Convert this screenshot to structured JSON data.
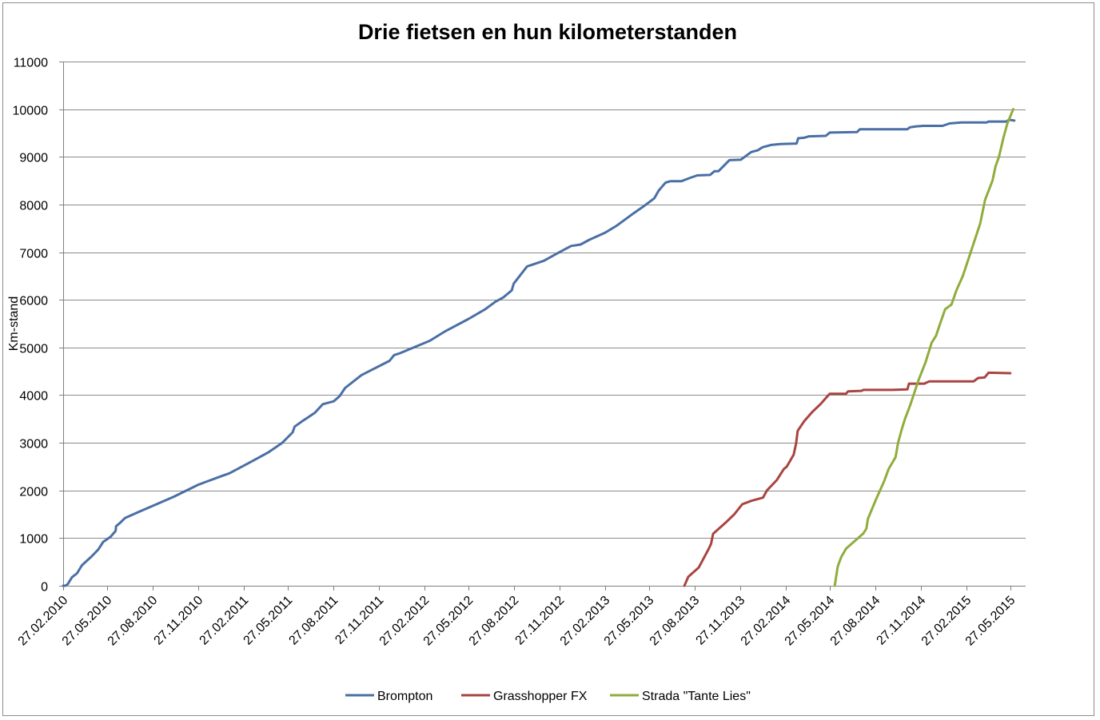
{
  "chart_data": {
    "type": "line",
    "title": "Drie fietsen en hun kilometerstanden",
    "xlabel": "",
    "ylabel": "Km-stand",
    "ylim": [
      0,
      11000
    ],
    "yticks": [
      0,
      1000,
      2000,
      3000,
      4000,
      5000,
      6000,
      7000,
      8000,
      9000,
      10000,
      11000
    ],
    "xlim": [
      "2010-02-27",
      "2015-06-27"
    ],
    "xtick_dates": [
      "2010-02-27",
      "2010-05-27",
      "2010-08-27",
      "2010-11-27",
      "2011-02-27",
      "2011-05-27",
      "2011-08-27",
      "2011-11-27",
      "2012-02-27",
      "2012-05-27",
      "2012-08-27",
      "2012-11-27",
      "2013-02-27",
      "2013-05-27",
      "2013-08-27",
      "2013-11-27",
      "2014-02-27",
      "2014-05-27",
      "2014-08-27",
      "2014-11-27",
      "2015-02-27",
      "2015-05-27"
    ],
    "xtick_labels": [
      "27.02.2010",
      "27.05.2010",
      "27.08.2010",
      "27.11.2010",
      "27.02.2011",
      "27.05.2011",
      "27.08.2011",
      "27.11.2011",
      "27.02.2012",
      "27.05.2012",
      "27.08.2012",
      "27.11.2012",
      "27.02.2013",
      "27.05.2013",
      "27.08.2013",
      "27.11.2013",
      "27.02.2014",
      "27.05.2014",
      "27.08.2014",
      "27.11.2014",
      "27.02.2015",
      "27.05.2015"
    ],
    "grid": "horizontal",
    "legend_position": "bottom",
    "series": [
      {
        "name": "Brompton",
        "color": "#4a6fa5",
        "points": [
          [
            "2010-02-27",
            0
          ],
          [
            "2010-03-03",
            0
          ],
          [
            "2010-03-08",
            30
          ],
          [
            "2010-03-17",
            180
          ],
          [
            "2010-03-27",
            260
          ],
          [
            "2010-04-06",
            430
          ],
          [
            "2010-04-26",
            620
          ],
          [
            "2010-05-09",
            760
          ],
          [
            "2010-05-19",
            920
          ],
          [
            "2010-06-03",
            1030
          ],
          [
            "2010-06-13",
            1150
          ],
          [
            "2010-06-14",
            1250
          ],
          [
            "2010-06-22",
            1320
          ],
          [
            "2010-07-02",
            1420
          ],
          [
            "2010-08-01",
            1560
          ],
          [
            "2010-09-06",
            1720
          ],
          [
            "2010-10-09",
            1870
          ],
          [
            "2010-11-27",
            2120
          ],
          [
            "2011-01-13",
            2300
          ],
          [
            "2011-01-29",
            2360
          ],
          [
            "2011-03-17",
            2620
          ],
          [
            "2011-04-18",
            2800
          ],
          [
            "2011-05-16",
            3000
          ],
          [
            "2011-06-06",
            3220
          ],
          [
            "2011-06-10",
            3340
          ],
          [
            "2011-06-25",
            3450
          ],
          [
            "2011-07-21",
            3630
          ],
          [
            "2011-08-06",
            3810
          ],
          [
            "2011-08-28",
            3870
          ],
          [
            "2011-09-09",
            3980
          ],
          [
            "2011-09-20",
            4150
          ],
          [
            "2011-10-23",
            4420
          ],
          [
            "2011-12-19",
            4720
          ],
          [
            "2011-12-28",
            4840
          ],
          [
            "2012-01-09",
            4880
          ],
          [
            "2012-03-09",
            5140
          ],
          [
            "2012-04-08",
            5330
          ],
          [
            "2012-05-27",
            5600
          ],
          [
            "2012-06-29",
            5800
          ],
          [
            "2012-07-20",
            5960
          ],
          [
            "2012-08-05",
            6050
          ],
          [
            "2012-08-22",
            6200
          ],
          [
            "2012-08-26",
            6340
          ],
          [
            "2012-09-22",
            6700
          ],
          [
            "2012-10-26",
            6820
          ],
          [
            "2012-11-25",
            6990
          ],
          [
            "2012-12-20",
            7130
          ],
          [
            "2013-01-08",
            7160
          ],
          [
            "2013-01-26",
            7260
          ],
          [
            "2013-02-27",
            7410
          ],
          [
            "2013-03-23",
            7560
          ],
          [
            "2013-04-26",
            7820
          ],
          [
            "2013-05-18",
            7980
          ],
          [
            "2013-06-06",
            8130
          ],
          [
            "2013-06-15",
            8290
          ],
          [
            "2013-06-23",
            8390
          ],
          [
            "2013-06-29",
            8460
          ],
          [
            "2013-07-09",
            8490
          ],
          [
            "2013-07-31",
            8490
          ],
          [
            "2013-08-18",
            8560
          ],
          [
            "2013-09-01",
            8610
          ],
          [
            "2013-09-27",
            8620
          ],
          [
            "2013-10-06",
            8700
          ],
          [
            "2013-10-14",
            8700
          ],
          [
            "2013-11-05",
            8930
          ],
          [
            "2013-11-28",
            8940
          ],
          [
            "2013-12-19",
            9100
          ],
          [
            "2014-01-02",
            9140
          ],
          [
            "2014-01-11",
            9200
          ],
          [
            "2014-01-28",
            9250
          ],
          [
            "2014-02-16",
            9270
          ],
          [
            "2014-03-21",
            9280
          ],
          [
            "2014-03-24",
            9390
          ],
          [
            "2014-04-05",
            9400
          ],
          [
            "2014-04-15",
            9430
          ],
          [
            "2014-05-19",
            9440
          ],
          [
            "2014-05-27",
            9510
          ],
          [
            "2014-07-21",
            9520
          ],
          [
            "2014-07-27",
            9580
          ],
          [
            "2014-08-30",
            9580
          ],
          [
            "2014-10-31",
            9580
          ],
          [
            "2014-11-05",
            9620
          ],
          [
            "2014-11-18",
            9640
          ],
          [
            "2014-12-02",
            9650
          ],
          [
            "2014-12-22",
            9650
          ],
          [
            "2015-01-10",
            9650
          ],
          [
            "2015-01-24",
            9700
          ],
          [
            "2015-02-17",
            9720
          ],
          [
            "2015-04-09",
            9720
          ],
          [
            "2015-04-13",
            9740
          ],
          [
            "2015-05-19",
            9740
          ],
          [
            "2015-05-24",
            9780
          ],
          [
            "2015-06-04",
            9760
          ]
        ]
      },
      {
        "name": "Grasshopper FX",
        "color": "#a94441",
        "points": [
          [
            "2013-08-06",
            0
          ],
          [
            "2013-08-14",
            190
          ],
          [
            "2013-09-04",
            380
          ],
          [
            "2013-09-24",
            770
          ],
          [
            "2013-09-29",
            880
          ],
          [
            "2013-10-03",
            1090
          ],
          [
            "2013-10-15",
            1200
          ],
          [
            "2013-10-30",
            1340
          ],
          [
            "2013-11-15",
            1500
          ],
          [
            "2013-12-01",
            1710
          ],
          [
            "2013-12-19",
            1780
          ],
          [
            "2014-01-12",
            1850
          ],
          [
            "2014-01-20",
            2000
          ],
          [
            "2014-02-09",
            2220
          ],
          [
            "2014-02-23",
            2450
          ],
          [
            "2014-03-01",
            2500
          ],
          [
            "2014-03-15",
            2750
          ],
          [
            "2014-03-20",
            2990
          ],
          [
            "2014-03-23",
            3250
          ],
          [
            "2014-04-05",
            3450
          ],
          [
            "2014-04-22",
            3650
          ],
          [
            "2014-05-09",
            3820
          ],
          [
            "2014-05-20",
            3950
          ],
          [
            "2014-05-27",
            4030
          ],
          [
            "2014-06-29",
            4030
          ],
          [
            "2014-07-03",
            4080
          ],
          [
            "2014-07-30",
            4090
          ],
          [
            "2014-08-03",
            4110
          ],
          [
            "2014-09-30",
            4110
          ],
          [
            "2014-10-31",
            4120
          ],
          [
            "2014-11-03",
            4240
          ],
          [
            "2014-12-04",
            4240
          ],
          [
            "2014-12-14",
            4290
          ],
          [
            "2015-03-14",
            4290
          ],
          [
            "2015-03-23",
            4360
          ],
          [
            "2015-04-05",
            4370
          ],
          [
            "2015-04-13",
            4470
          ],
          [
            "2015-05-27",
            4460
          ]
        ]
      },
      {
        "name": "Strada \"Tante Lies\"",
        "color": "#8fad3c",
        "points": [
          [
            "2014-06-06",
            0
          ],
          [
            "2014-06-09",
            200
          ],
          [
            "2014-06-12",
            400
          ],
          [
            "2014-06-19",
            600
          ],
          [
            "2014-06-29",
            780
          ],
          [
            "2014-07-10",
            880
          ],
          [
            "2014-07-21",
            980
          ],
          [
            "2014-08-03",
            1100
          ],
          [
            "2014-08-09",
            1200
          ],
          [
            "2014-08-12",
            1400
          ],
          [
            "2014-08-28",
            1800
          ],
          [
            "2014-09-14",
            2200
          ],
          [
            "2014-09-23",
            2450
          ],
          [
            "2014-10-07",
            2700
          ],
          [
            "2014-10-12",
            3000
          ],
          [
            "2014-10-20",
            3300
          ],
          [
            "2014-10-26",
            3500
          ],
          [
            "2014-11-06",
            3800
          ],
          [
            "2014-11-22",
            4300
          ],
          [
            "2014-12-07",
            4700
          ],
          [
            "2014-12-19",
            5100
          ],
          [
            "2014-12-28",
            5250
          ],
          [
            "2015-01-05",
            5500
          ],
          [
            "2015-01-15",
            5800
          ],
          [
            "2015-01-28",
            5900
          ],
          [
            "2015-02-07",
            6200
          ],
          [
            "2015-02-20",
            6500
          ],
          [
            "2015-03-08",
            7000
          ],
          [
            "2015-03-27",
            7600
          ],
          [
            "2015-04-06",
            8100
          ],
          [
            "2015-04-21",
            8500
          ],
          [
            "2015-04-27",
            8800
          ],
          [
            "2015-05-04",
            9000
          ],
          [
            "2015-05-13",
            9400
          ],
          [
            "2015-05-21",
            9700
          ],
          [
            "2015-06-02",
            10000
          ]
        ]
      }
    ]
  }
}
